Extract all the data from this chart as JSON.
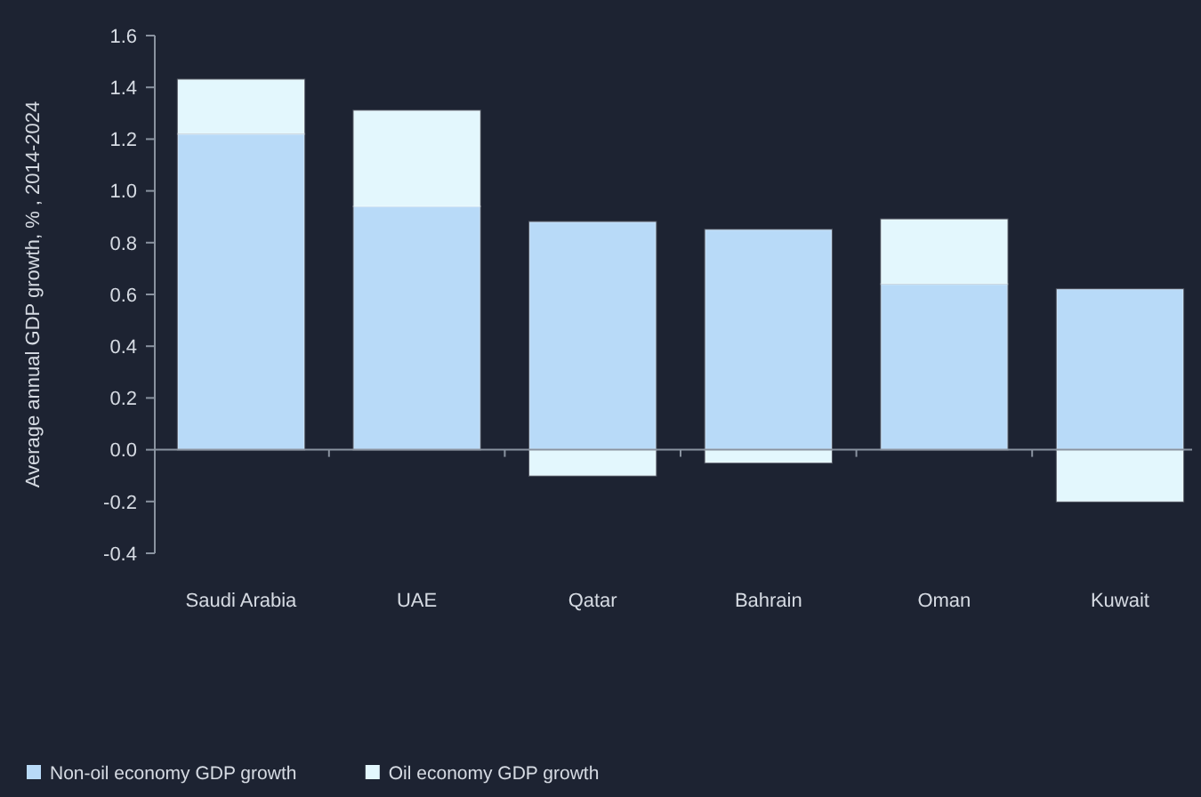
{
  "chart_data": {
    "type": "bar",
    "stacked": true,
    "ylabel": "Average annual GDP growth, % , 2014-2024",
    "categories": [
      "Saudi Arabia",
      "UAE",
      "Qatar",
      "Bahrain",
      "Oman",
      "Kuwait"
    ],
    "series": [
      {
        "name": "Non-oil economy GDP growth",
        "color": "#b8daf8",
        "values": [
          1.22,
          0.94,
          0.88,
          0.85,
          0.64,
          0.62
        ]
      },
      {
        "name": "Oil economy GDP growth",
        "color": "#e3f7fd",
        "values": [
          0.21,
          0.37,
          -0.1,
          -0.05,
          0.25,
          -0.2
        ]
      }
    ],
    "ylim": [
      -0.4,
      1.6
    ],
    "yticks": [
      -0.4,
      -0.2,
      {
        "value": 0,
        "label": "0.0"
      },
      0.2,
      0.4,
      0.6,
      0.8,
      {
        "value": 1,
        "label": "1.0"
      },
      1.2,
      1.4,
      1.6
    ],
    "legend": "bottom left"
  }
}
